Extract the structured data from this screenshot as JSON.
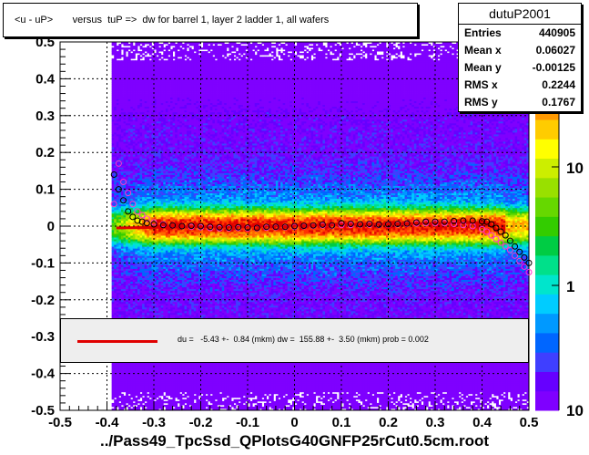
{
  "title": "<u - uP>       versus  tuP =>  dw for barrel 1, layer 2 ladder 1, all wafers",
  "footer": "../Pass49_TpcSsd_QPlotsG40GNFP25rCut0.5cm.root",
  "stats": {
    "name": "dutuP2001",
    "rows": [
      {
        "label": "Entries",
        "value": "440905"
      },
      {
        "label": "Mean x",
        "value": "0.06027"
      },
      {
        "label": "Mean y",
        "value": "-0.00125"
      },
      {
        "label": "RMS x",
        "value": "0.2244"
      },
      {
        "label": "RMS y",
        "value": "0.1767"
      }
    ]
  },
  "fit_text": "du =   -5.43 +-  0.84 (mkm) dw =  155.88 +-  3.50 (mkm) prob = 0.002",
  "colors": {
    "fit_line": "#e00000",
    "profile_black": "#000000",
    "profile_magenta": "#ff33cc",
    "fit_box": "#eeeeee"
  },
  "chart_data": {
    "type": "heatmap",
    "title": "<u - uP>       versus  tuP =>  dw for barrel 1, layer 2 ladder 1, all wafers",
    "xlim": [
      -0.5,
      0.5
    ],
    "ylim": [
      -0.5,
      0.5
    ],
    "x_ticks": [
      "-0.5",
      "-0.4",
      "-0.3",
      "-0.2",
      "-0.1",
      "0",
      "0.1",
      "0.2",
      "0.3",
      "0.4",
      "0.5"
    ],
    "y_ticks": [
      "-0.5",
      "-0.4",
      "-0.3",
      "-0.2",
      "-0.1",
      "0",
      "0.1",
      "0.2",
      "0.3",
      "0.4",
      "0.5"
    ],
    "z_scale": "log",
    "z_ticks": [
      "1",
      "10"
    ],
    "z_last_label": "10",
    "grid": true,
    "data_x_range": [
      -0.39,
      0.5
    ],
    "core_y_halfwidth": 0.03,
    "profile_black": {
      "x": [
        -0.385,
        -0.375,
        -0.365,
        -0.355,
        -0.345,
        -0.335,
        -0.325,
        -0.315,
        -0.3,
        -0.28,
        -0.26,
        -0.24,
        -0.22,
        -0.2,
        -0.18,
        -0.16,
        -0.14,
        -0.12,
        -0.1,
        -0.08,
        -0.06,
        -0.04,
        -0.02,
        0,
        0.02,
        0.04,
        0.06,
        0.08,
        0.1,
        0.12,
        0.14,
        0.16,
        0.18,
        0.2,
        0.22,
        0.24,
        0.26,
        0.28,
        0.3,
        0.32,
        0.34,
        0.36,
        0.38,
        0.4,
        0.41,
        0.42,
        0.43,
        0.44,
        0.45,
        0.46,
        0.47,
        0.48,
        0.49,
        0.5
      ],
      "y": [
        0.14,
        0.1,
        0.07,
        0.04,
        0.025,
        0.015,
        0.012,
        0.008,
        0.005,
        0.003,
        0.002,
        0,
        0.001,
        0,
        -0.002,
        -0.003,
        -0.004,
        -0.003,
        -0.004,
        -0.005,
        -0.002,
        -0.002,
        -0.002,
        0,
        0.001,
        0.002,
        0.004,
        0.002,
        0.008,
        0.006,
        0.005,
        0.006,
        0.004,
        0.005,
        0.006,
        0.007,
        0.01,
        0.012,
        0.012,
        0.012,
        0.014,
        0.015,
        0.015,
        0.013,
        0.012,
        0.005,
        -0.005,
        -0.015,
        -0.025,
        -0.04,
        -0.055,
        -0.07,
        -0.085,
        -0.1
      ]
    },
    "profile_magenta": {
      "x": [
        -0.385,
        -0.375,
        -0.365,
        -0.355,
        -0.345,
        -0.335,
        -0.325,
        -0.315,
        -0.3,
        -0.28,
        -0.26,
        -0.24,
        -0.22,
        -0.2,
        -0.18,
        -0.16,
        -0.14,
        -0.12,
        -0.1,
        -0.08,
        -0.06,
        -0.04,
        -0.02,
        0,
        0.02,
        0.04,
        0.06,
        0.08,
        0.1,
        0.12,
        0.14,
        0.16,
        0.18,
        0.2,
        0.22,
        0.24,
        0.26,
        0.28,
        0.3,
        0.32,
        0.34,
        0.36,
        0.38,
        0.4,
        0.41,
        0.42,
        0.43,
        0.44,
        0.45,
        0.46,
        0.47,
        0.48,
        0.49,
        0.5
      ],
      "y": [
        0.06,
        0.17,
        0.12,
        0.09,
        0.06,
        0.04,
        0.03,
        0.02,
        0.01,
        0.005,
        0.002,
        0,
        -0.002,
        -0.003,
        -0.005,
        -0.006,
        -0.006,
        -0.005,
        -0.006,
        -0.006,
        -0.004,
        -0.003,
        -0.003,
        -0.002,
        0,
        0.001,
        0.002,
        0.001,
        0.003,
        0.003,
        0.004,
        0.004,
        0.003,
        0.004,
        0.005,
        0.006,
        0.007,
        0.008,
        0.008,
        0.008,
        0.006,
        0.003,
        0,
        -0.008,
        -0.015,
        -0.025,
        -0.035,
        -0.045,
        -0.055,
        -0.065,
        -0.08,
        -0.095,
        -0.11,
        -0.125
      ]
    },
    "fit_line": {
      "x": [
        -0.38,
        0.42
      ],
      "y": [
        -0.005,
        0.01
      ]
    }
  }
}
